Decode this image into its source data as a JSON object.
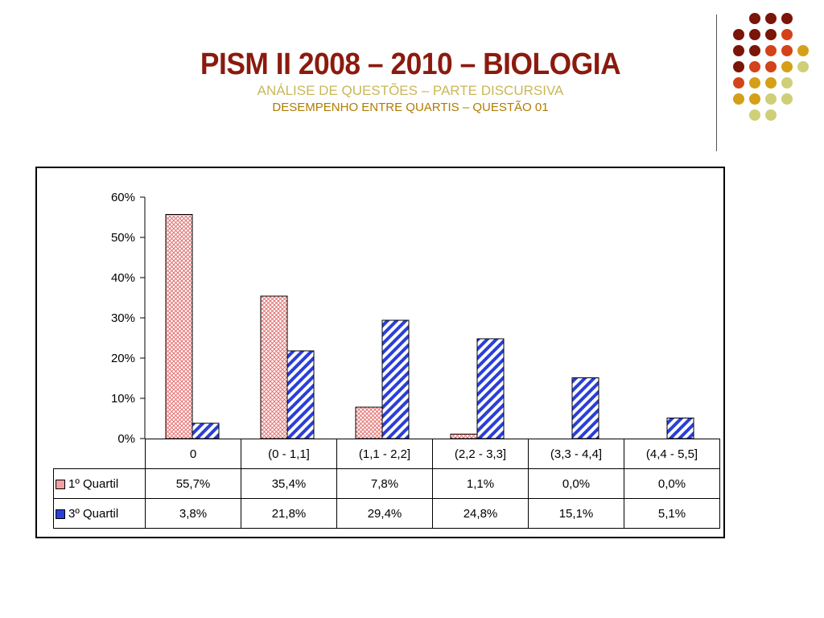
{
  "header": {
    "title": "PISM II 2008 – 2010 – BIOLOGIA",
    "subtitle": "ANÁLISE DE QUESTÕES – PARTE DISCURSIVA",
    "subtitle2": "DESEMPENHO ENTRE QUARTIS – QUESTÃO 01"
  },
  "colors": {
    "title": "#8b1a0e",
    "subtitle": "#c8b85a",
    "subtitle2": "#b07c00",
    "series1_fill": "#f4a0a0",
    "series2_fill": "#2a3fd8",
    "dot_palette": [
      "#7a1508",
      "#d4421a",
      "#d4a017",
      "#cfcf78"
    ]
  },
  "chart_data": {
    "type": "bar",
    "categories": [
      "0",
      "(0 - 1,1]",
      "(1,1 - 2,2]",
      "(2,2 - 3,3]",
      "(3,3 - 4,4]",
      "(4,4 - 5,5]"
    ],
    "series": [
      {
        "name": "1º Quartil",
        "values": [
          55.7,
          35.4,
          7.8,
          1.1,
          0.0,
          0.0
        ],
        "labels": [
          "55,7%",
          "35,4%",
          "7,8%",
          "1,1%",
          "0,0%",
          "0,0%"
        ]
      },
      {
        "name": "3º Quartil",
        "values": [
          3.8,
          21.8,
          29.4,
          24.8,
          15.1,
          5.1
        ],
        "labels": [
          "3,8%",
          "21,8%",
          "29,4%",
          "24,8%",
          "15,1%",
          "5,1%"
        ]
      }
    ],
    "yticks": [
      "0%",
      "10%",
      "20%",
      "30%",
      "40%",
      "50%",
      "60%"
    ],
    "ylim": [
      0,
      60
    ],
    "grid": false,
    "legend": "data-table"
  }
}
